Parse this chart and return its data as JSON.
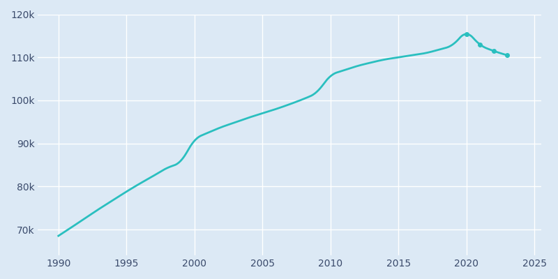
{
  "years": [
    1990,
    1991,
    1992,
    1993,
    1994,
    1995,
    1996,
    1997,
    1998,
    1999,
    2000,
    2001,
    2002,
    2003,
    2004,
    2005,
    2006,
    2007,
    2008,
    2009,
    2010,
    2011,
    2012,
    2013,
    2014,
    2015,
    2016,
    2017,
    2018,
    2019,
    2020,
    2021,
    2022,
    2023
  ],
  "population": [
    68531,
    70600,
    72700,
    74800,
    76800,
    78800,
    80700,
    82500,
    84300,
    86000,
    90598,
    92500,
    93800,
    94900,
    96000,
    97000,
    98000,
    99100,
    100300,
    102000,
    105594,
    107000,
    108000,
    108800,
    109500,
    110000,
    110500,
    111000,
    111800,
    113000,
    115400,
    113000,
    111500,
    110500
  ],
  "line_color": "#2abfbf",
  "background_color": "#dce9f5",
  "marker_years": [
    2020,
    2021,
    2022,
    2023
  ],
  "marker_populations": [
    115400,
    113000,
    111500,
    110500
  ],
  "xlim": [
    1988.5,
    2025.5
  ],
  "ylim": [
    64000,
    120000
  ],
  "xticks": [
    1990,
    1995,
    2000,
    2005,
    2010,
    2015,
    2020,
    2025
  ],
  "yticks": [
    70000,
    80000,
    90000,
    100000,
    110000,
    120000
  ],
  "ytick_labels": [
    "70k",
    "80k",
    "90k",
    "100k",
    "110k",
    "120k"
  ],
  "grid_color": "#ffffff",
  "tick_label_color": "#3a4a6b",
  "line_width": 2.0,
  "marker_size": 4
}
